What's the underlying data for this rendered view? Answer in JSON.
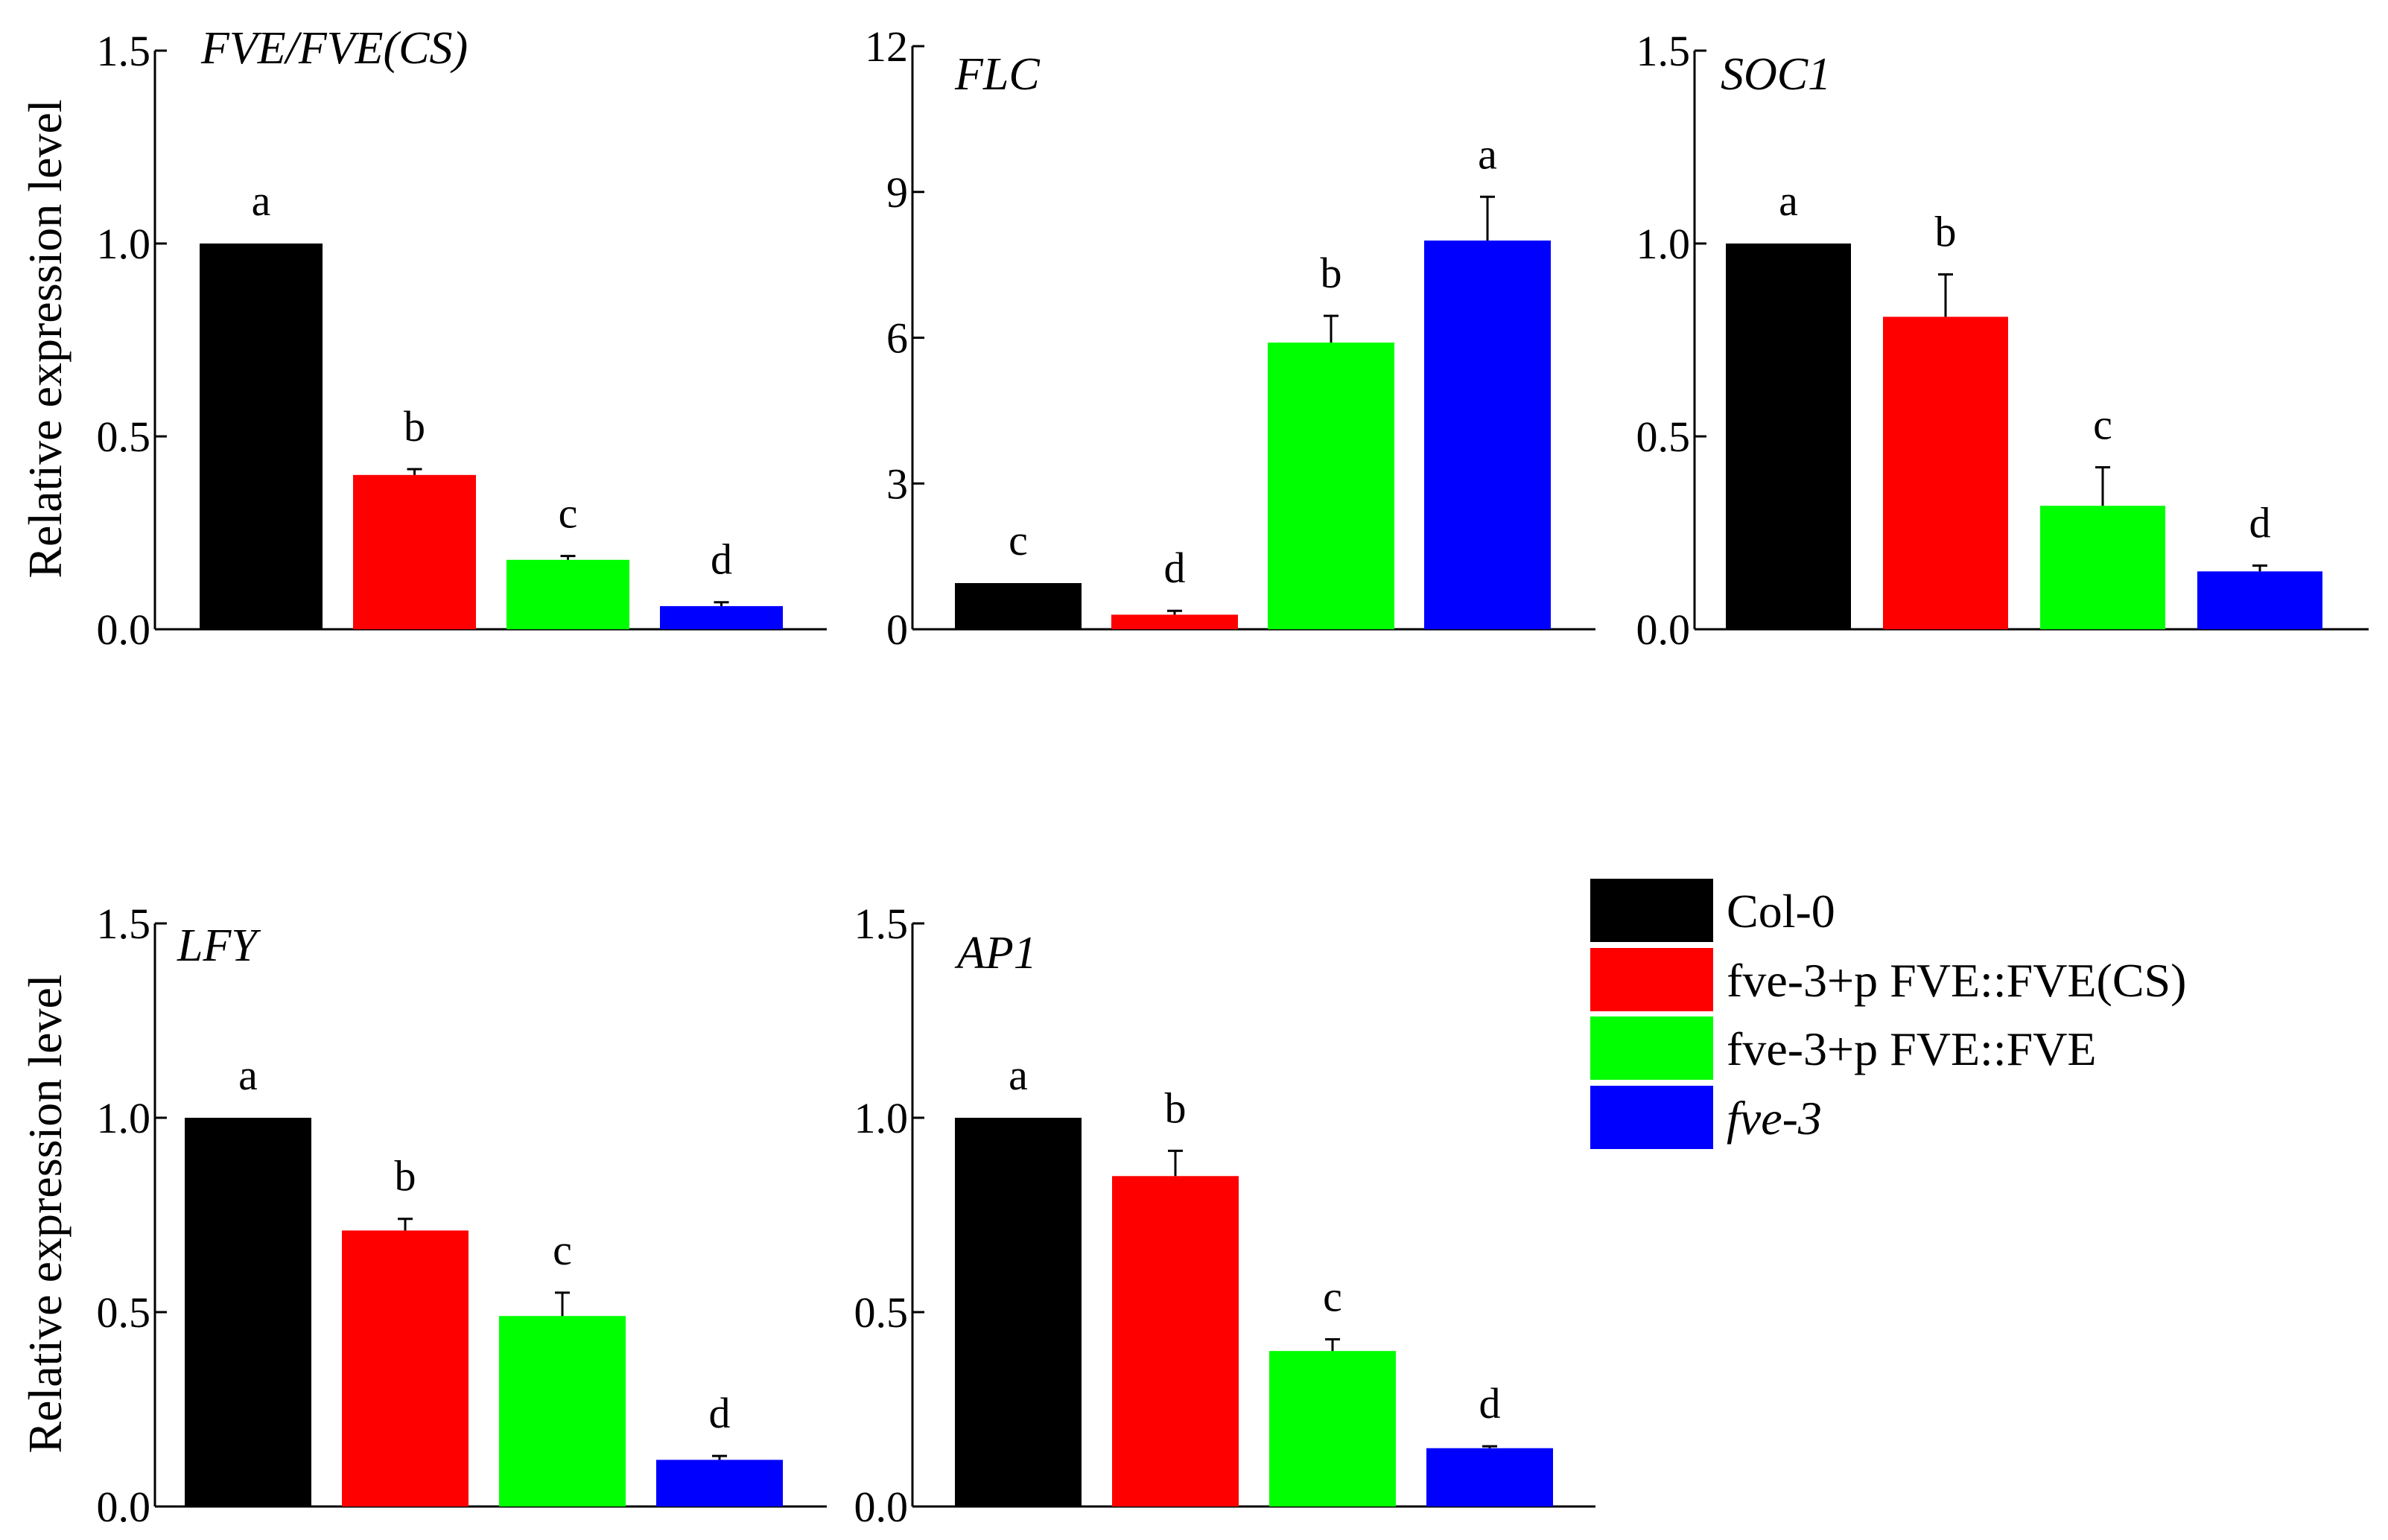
{
  "chart_data": [
    {
      "type": "bar",
      "title": "FVE/FVE(CS)",
      "ylabel": "Relative expression level",
      "ylim": [
        0,
        1.5
      ],
      "yticks": [
        "0.0",
        "0.5",
        "1.0",
        "1.5"
      ],
      "categories": [
        "Col-0",
        "fve-3+p FVE::FVE(CS)",
        "fve-3+p FVE::FVE",
        "fve-3"
      ],
      "values": [
        1.0,
        0.4,
        0.18,
        0.06
      ],
      "errors": [
        0.0,
        0.015,
        0.01,
        0.01
      ],
      "significance": [
        "a",
        "b",
        "c",
        "d"
      ]
    },
    {
      "type": "bar",
      "title": "FLC",
      "ylabel": "",
      "ylim": [
        0,
        12
      ],
      "yticks": [
        "0",
        "3",
        "6",
        "9",
        "12"
      ],
      "categories": [
        "Col-0",
        "fve-3+p FVE::FVE(CS)",
        "fve-3+p FVE::FVE",
        "fve-3"
      ],
      "values": [
        0.95,
        0.3,
        5.9,
        8.0
      ],
      "errors": [
        0.0,
        0.08,
        0.55,
        0.9
      ],
      "significance": [
        "c",
        "d",
        "b",
        "a"
      ]
    },
    {
      "type": "bar",
      "title": "SOC1",
      "ylabel": "",
      "ylim": [
        0,
        1.5
      ],
      "yticks": [
        "0.0",
        "0.5",
        "1.0",
        "1.5"
      ],
      "categories": [
        "Col-0",
        "fve-3+p FVE::FVE(CS)",
        "fve-3+p FVE::FVE",
        "fve-3"
      ],
      "values": [
        1.0,
        0.81,
        0.32,
        0.15
      ],
      "errors": [
        0.0,
        0.11,
        0.1,
        0.015
      ],
      "significance": [
        "a",
        "b",
        "c",
        "d"
      ]
    },
    {
      "type": "bar",
      "title": "LFY",
      "ylabel": "Relative expression level",
      "ylim": [
        0,
        1.5
      ],
      "yticks": [
        "0.0",
        "0.5",
        "1.0",
        "1.5"
      ],
      "categories": [
        "Col-0",
        "fve-3+p FVE::FVE(CS)",
        "fve-3+p FVE::FVE",
        "fve-3"
      ],
      "values": [
        1.0,
        0.71,
        0.49,
        0.12
      ],
      "errors": [
        0.0,
        0.03,
        0.06,
        0.01
      ],
      "significance": [
        "a",
        "b",
        "c",
        "d"
      ]
    },
    {
      "type": "bar",
      "title": "AP1",
      "ylabel": "",
      "ylim": [
        0,
        1.5
      ],
      "yticks": [
        "0.0",
        "0.5",
        "1.0",
        "1.5"
      ],
      "categories": [
        "Col-0",
        "fve-3+p FVE::FVE(CS)",
        "fve-3+p FVE::FVE",
        "fve-3"
      ],
      "values": [
        1.0,
        0.85,
        0.4,
        0.15
      ],
      "errors": [
        0.0,
        0.065,
        0.03,
        0.005
      ],
      "significance": [
        "a",
        "b",
        "c",
        "d"
      ]
    }
  ],
  "legend": {
    "position": "right",
    "items": [
      {
        "label": "Col-0",
        "color": "#000000",
        "italic": false
      },
      {
        "label": "fve-3+p FVE::FVE(CS)",
        "color": "#ff0000",
        "italic": false
      },
      {
        "label": "fve-3+p FVE::FVE",
        "color": "#00ff00",
        "italic": false
      },
      {
        "label": "fve-3",
        "color": "#0000ff",
        "italic": true
      }
    ]
  }
}
